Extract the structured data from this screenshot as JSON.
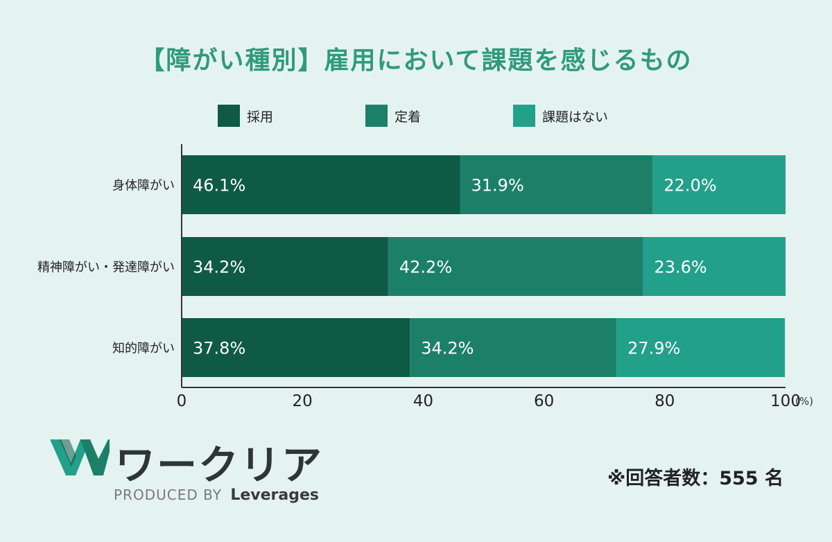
{
  "chart_data": {
    "type": "bar",
    "orientation": "horizontal",
    "stacked": true,
    "title": "【障がい種別】雇用において課題を感じるもの",
    "categories": [
      "身体障がい",
      "精神障がい・発達障がい",
      "知的障がい"
    ],
    "series": [
      {
        "name": "採用",
        "color": "#0e5a45",
        "values": [
          46.1,
          34.2,
          37.8
        ],
        "labels": [
          "46.1%",
          "34.2%",
          "37.8%"
        ]
      },
      {
        "name": "定着",
        "color": "#1c8069",
        "values": [
          31.9,
          42.2,
          34.2
        ],
        "labels": [
          "31.9%",
          "42.2%",
          "34.2%"
        ]
      },
      {
        "name": "課題はない",
        "color": "#23a08a",
        "values": [
          22.0,
          23.6,
          27.9
        ],
        "labels": [
          "22.0%",
          "23.6%",
          "27.9%"
        ]
      }
    ],
    "xlim": [
      0,
      100
    ],
    "xticks": [
      "0",
      "20",
      "40",
      "60",
      "80",
      "100"
    ],
    "xunit": "(%)",
    "grid": false,
    "legend": "top"
  },
  "brand": {
    "name": "ワークリア",
    "produced_by": "PRODUCED BY",
    "company": "Leverages",
    "color": "#23a08a"
  },
  "note": "※回答者数：555 名"
}
